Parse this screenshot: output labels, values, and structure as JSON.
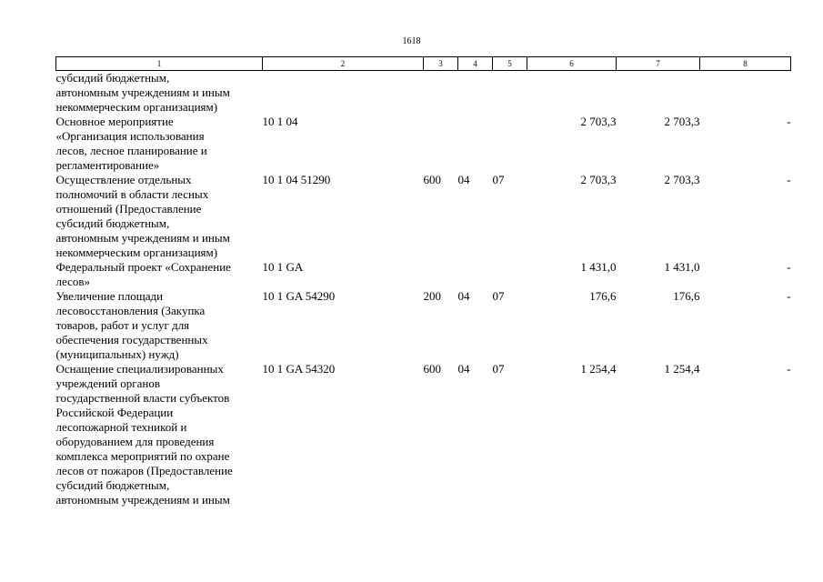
{
  "page_number": "1618",
  "columns": [
    "1",
    "2",
    "3",
    "4",
    "5",
    "6",
    "7",
    "8"
  ],
  "rows": [
    {
      "name": "субсидий бюджетным,\nавтономным учреждениям и иным\nнекоммерческим организациям)",
      "code": "",
      "c3": "",
      "c4": "",
      "c5": "",
      "c6": "",
      "c7": "",
      "c8": ""
    },
    {
      "name": "Основное мероприятие\n«Организация использования\nлесов, лесное планирование и\nрегламентирование»",
      "code": "10 1 04",
      "c3": "",
      "c4": "",
      "c5": "",
      "c6": "2 703,3",
      "c7": "2 703,3",
      "c8": "-"
    },
    {
      "name": "Осуществление отдельных\nполномочий в области лесных\nотношений (Предоставление\nсубсидий бюджетным,\nавтономным учреждениям и иным\nнекоммерческим организациям)",
      "code": "10 1 04 51290",
      "c3": "600",
      "c4": "04",
      "c5": "07",
      "c6": "2 703,3",
      "c7": "2 703,3",
      "c8": "-"
    },
    {
      "name": "Федеральный проект «Сохранение\nлесов»",
      "code": "10 1 GA",
      "c3": "",
      "c4": "",
      "c5": "",
      "c6": "1 431,0",
      "c7": "1 431,0",
      "c8": "-"
    },
    {
      "name": "Увеличение площади\nлесовосстановления (Закупка\nтоваров, работ и услуг для\nобеспечения государственных\n(муниципальных) нужд)",
      "code": "10 1 GA 54290",
      "c3": "200",
      "c4": "04",
      "c5": "07",
      "c6": "176,6",
      "c7": "176,6",
      "c8": "-"
    },
    {
      "name": "Оснащение специализированных\nучреждений органов\nгосударственной власти субъектов\nРоссийской Федерации\nлесопожарной техникой и\nоборудованием для проведения\nкомплекса мероприятий по охране\nлесов от пожаров (Предоставление\nсубсидий бюджетным,\nавтономным учреждениям и иным",
      "code": "10 1 GA 54320",
      "c3": "600",
      "c4": "04",
      "c5": "07",
      "c6": "1 254,4",
      "c7": "1 254,4",
      "c8": "-"
    }
  ]
}
